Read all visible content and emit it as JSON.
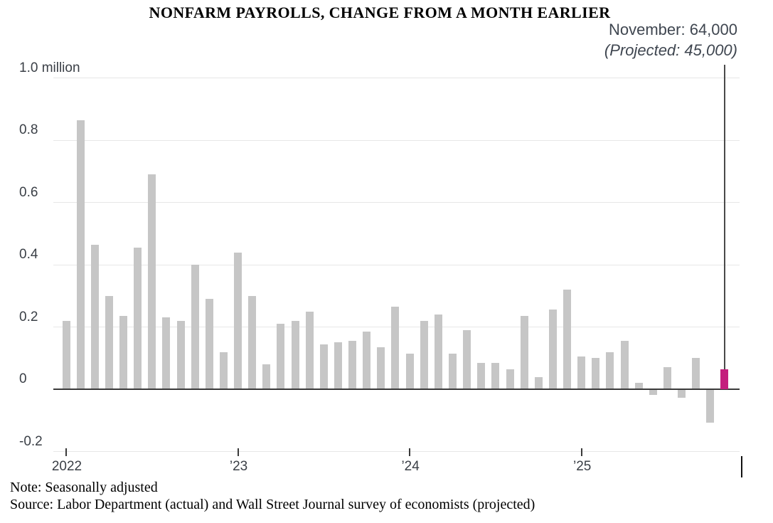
{
  "title": "NONFARM PAYROLLS, CHANGE FROM A MONTH EARLIER",
  "annotation": {
    "line1": "November: 64,000",
    "line2": "(Projected: 45,000)"
  },
  "footer": {
    "note": "Note: Seasonally adjusted",
    "source": "Source: Labor Department (actual) and Wall Street Journal survey of economists (projected)"
  },
  "colors": {
    "bar": "#c6c6c6",
    "highlight": "#c41e7d",
    "gridline": "#e7e7e7",
    "zero_line": "#3a3a3a",
    "callout_line": "#4a4a4a",
    "tick": "#3a3a3a",
    "end_tick": "#111111",
    "axis_text": "#3a3f46"
  },
  "chart_data": {
    "type": "bar",
    "title": "NONFARM PAYROLLS, CHANGE FROM A MONTH EARLIER",
    "unit": "million",
    "ylim": [
      -0.2,
      1.0
    ],
    "grid": "horizontal",
    "legend": "none",
    "y_tick_labels": [
      "1.0 million",
      "0.8",
      "0.6",
      "0.4",
      "0.2",
      "0",
      "-0.2"
    ],
    "y_tick_values": [
      1.0,
      0.8,
      0.6,
      0.4,
      0.2,
      0,
      -0.2
    ],
    "x_year_labels": [
      "2022",
      "’23",
      "’24",
      "’25"
    ],
    "x_year_start_indices": [
      0,
      12,
      24,
      36
    ],
    "months": [
      "Jan 2022",
      "Feb 2022",
      "Mar 2022",
      "Apr 2022",
      "May 2022",
      "Jun 2022",
      "Jul 2022",
      "Aug 2022",
      "Sep 2022",
      "Oct 2022",
      "Nov 2022",
      "Dec 2022",
      "Jan 2023",
      "Feb 2023",
      "Mar 2023",
      "Apr 2023",
      "May 2023",
      "Jun 2023",
      "Jul 2023",
      "Aug 2023",
      "Sep 2023",
      "Oct 2023",
      "Nov 2023",
      "Dec 2023",
      "Jan 2024",
      "Feb 2024",
      "Mar 2024",
      "Apr 2024",
      "May 2024",
      "Jun 2024",
      "Jul 2024",
      "Aug 2024",
      "Sep 2024",
      "Oct 2024",
      "Nov 2024",
      "Dec 2024",
      "Jan 2025",
      "Feb 2025",
      "Mar 2025",
      "Apr 2025",
      "May 2025",
      "Jun 2025",
      "Jul 2025",
      "Aug 2025",
      "Sep 2025",
      "Oct 2025",
      "Nov 2025"
    ],
    "values": [
      0.22,
      0.865,
      0.465,
      0.3,
      0.235,
      0.455,
      0.69,
      0.23,
      0.22,
      0.4,
      0.29,
      0.12,
      0.44,
      0.3,
      0.08,
      0.21,
      0.22,
      0.25,
      0.145,
      0.15,
      0.155,
      0.185,
      0.135,
      0.265,
      0.115,
      0.22,
      0.24,
      0.115,
      0.19,
      0.085,
      0.085,
      0.065,
      0.235,
      0.04,
      0.255,
      0.32,
      0.105,
      0.1,
      0.12,
      0.155,
      0.02,
      -0.015,
      0.07,
      -0.025,
      0.1,
      -0.105,
      0.064
    ],
    "highlight_index": 46,
    "highlight_month": "November",
    "highlight_value_label": "64,000",
    "projected_value_label": "45,000",
    "highlight_value": 0.064,
    "projected_value": 0.045
  }
}
